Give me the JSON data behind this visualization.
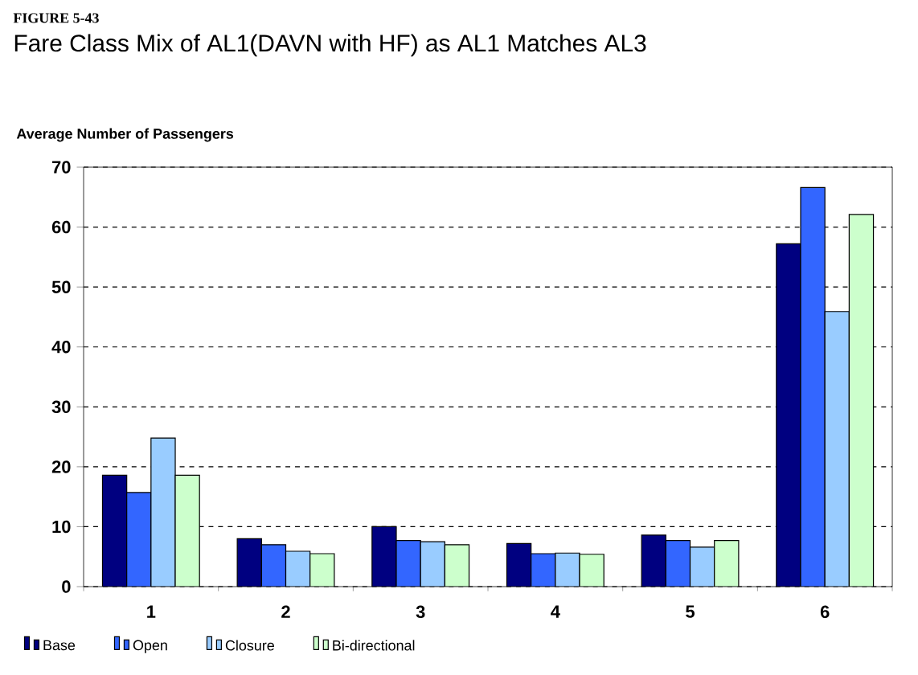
{
  "chart_data": {
    "type": "bar",
    "title": "Fare Class Mix of AL1(DAVN with HF) as AL1 Matches AL3",
    "annotations": [
      "FIGURE 5-43"
    ],
    "ylabel": "Average Number of Passengers",
    "categories": [
      "1",
      "2",
      "3",
      "4",
      "5",
      "6"
    ],
    "series": [
      {
        "name": "Base",
        "color": "#000080",
        "values": [
          18.6,
          8.0,
          10.0,
          7.2,
          8.6,
          57.2
        ]
      },
      {
        "name": "Open",
        "color": "#3366ff",
        "values": [
          15.7,
          7.0,
          7.7,
          5.5,
          7.7,
          66.6
        ]
      },
      {
        "name": "Closure",
        "color": "#99ccff",
        "values": [
          24.8,
          5.9,
          7.5,
          5.6,
          6.6,
          45.9
        ]
      },
      {
        "name": "Bi-directional",
        "color": "#ccffcc",
        "values": [
          18.6,
          5.5,
          7.0,
          5.4,
          7.7,
          62.1
        ]
      }
    ],
    "ylim": [
      0,
      70
    ],
    "yticks": [
      0,
      10,
      20,
      30,
      40,
      50,
      60,
      70
    ],
    "grid": "y",
    "legend": "bottom"
  }
}
